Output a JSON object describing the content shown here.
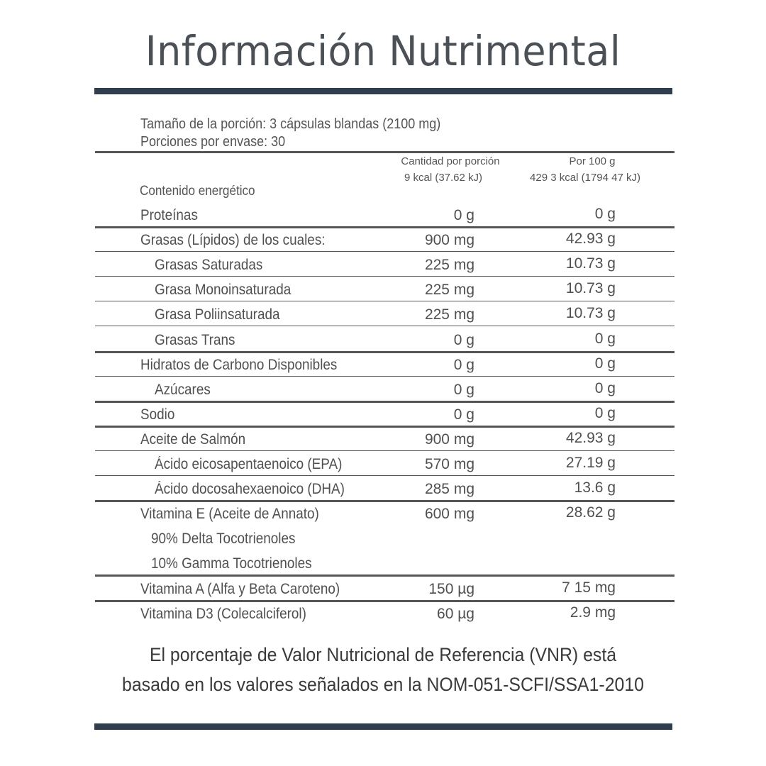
{
  "title": "Información Nutrimental",
  "serving": {
    "size": "Tamaño de la porción: 3 cápsulas blandas (2100  mg)",
    "per_container": "Porciones por envase: 30"
  },
  "columns": {
    "per_serving": "Cantidad por porción",
    "per_100g": "Por 100 g",
    "energy_label": "Contenido energético",
    "energy_per_serving": "9 kcal  (37.62 kJ)",
    "energy_per_100g": "429 3 kcal  (1794 47 kJ)"
  },
  "rows": [
    {
      "label": "Proteínas",
      "indent": 0,
      "per_serving": "0 g",
      "per_100g": "0 g",
      "sep": "thick"
    },
    {
      "label": "Grasas (Lípidos) de los cuales:",
      "indent": 0,
      "per_serving": "900 mg",
      "per_100g": "42.93 g",
      "sep": "thin"
    },
    {
      "label": "Grasas Saturadas",
      "indent": 1,
      "per_serving": "225 mg",
      "per_100g": "10.73 g",
      "sep": "thin"
    },
    {
      "label": "Grasa Monoinsaturada",
      "indent": 1,
      "per_serving": "225 mg",
      "per_100g": "10.73 g",
      "sep": "thin"
    },
    {
      "label": "Grasa Poliinsaturada",
      "indent": 1,
      "per_serving": "225 mg",
      "per_100g": "10.73 g",
      "sep": "thin"
    },
    {
      "label": "Grasas Trans",
      "indent": 1,
      "per_serving": "0 g",
      "per_100g": "0 g",
      "sep": "thick"
    },
    {
      "label": "Hidratos de Carbono Disponibles",
      "indent": 0,
      "per_serving": "0 g",
      "per_100g": "0 g",
      "sep": "thin"
    },
    {
      "label": "Azúcares",
      "indent": 1,
      "per_serving": "0 g",
      "per_100g": "0 g",
      "sep": "thick"
    },
    {
      "label": "Sodio",
      "indent": 0,
      "per_serving": "0 g",
      "per_100g": "0 g",
      "sep": "thick"
    },
    {
      "label": "Aceite de Salmón",
      "indent": 0,
      "per_serving": "900 mg",
      "per_100g": "42.93 g",
      "sep": "thin"
    },
    {
      "label": "Ácido eicosapentaenoico (EPA)",
      "indent": 1,
      "per_serving": "570 mg",
      "per_100g": "27.19 g",
      "sep": "thin"
    },
    {
      "label": "Ácido docosahexaenoico (DHA)",
      "indent": 1,
      "per_serving": "285 mg",
      "per_100g": "13.6 g",
      "sep": "thick"
    },
    {
      "label": "Vitamina E (Aceite de Annato)",
      "indent": 0,
      "per_serving": "600 mg",
      "per_100g": "28.62 g",
      "sep": "none"
    },
    {
      "label": "90% Delta Tocotrienoles",
      "indent": 2,
      "per_serving": "",
      "per_100g": "",
      "sep": "none"
    },
    {
      "label": "10% Gamma Tocotrienoles",
      "indent": 2,
      "per_serving": "",
      "per_100g": "",
      "sep": "thick"
    },
    {
      "label": "Vitamina A (Alfa y Beta Caroteno)",
      "indent": 0,
      "per_serving": "150 µg",
      "per_100g": "7 15 mg",
      "sep": "thick"
    },
    {
      "label": "Vitamina D3 (Colecalciferol)",
      "indent": 0,
      "per_serving": "60 µg",
      "per_100g": "2.9 mg",
      "sep": "none"
    }
  ],
  "footnote": {
    "line1": "El porcentaje de Valor Nutricional de Referencia (VNR) está",
    "line2": "basado en los valores señalados en la NOM-051-SCFI/SSA1-2010"
  },
  "colors": {
    "accent_bar": "#2f3e4d",
    "text": "#505050"
  }
}
